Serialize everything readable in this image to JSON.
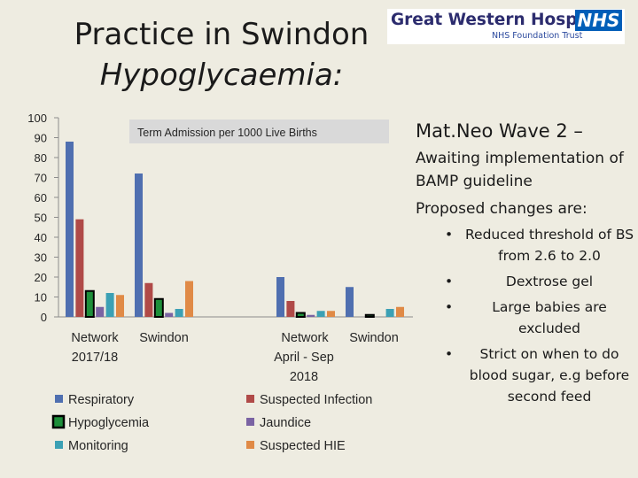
{
  "slide": {
    "title_line1": "Practice in Swindon",
    "title_line2": "Hypoglycaemia:"
  },
  "logo": {
    "name": "Great Western Hospitals",
    "badge": "NHS",
    "subtitle": "NHS Foundation Trust"
  },
  "right_text": {
    "heading": "Mat.Neo Wave 2 –",
    "line1": "Awaiting implementation of BAMP guideline",
    "line2": "Proposed changes are:",
    "bullet_char": "•",
    "bullets": [
      "Reduced threshold of BS from 2.6 to 2.0",
      "Dextrose gel",
      "Large babies are excluded",
      "Strict on when to do blood sugar, e.g before second feed"
    ]
  },
  "chart_data": {
    "type": "bar",
    "title": "Term Admission per 1000 Live Births",
    "categories": [
      "Network",
      "Swindon",
      "Network",
      "Swindon"
    ],
    "group_labels": [
      "2017/18",
      "April - Sep 2018"
    ],
    "ylim": [
      0,
      100
    ],
    "yticks": [
      0,
      10,
      20,
      30,
      40,
      50,
      60,
      70,
      80,
      90,
      100
    ],
    "grid": false,
    "legend_position": "bottom",
    "series": [
      {
        "name": "Respiratory",
        "color": "#4f6fb0",
        "values": [
          88,
          72,
          20,
          15
        ]
      },
      {
        "name": "Suspected Infection",
        "color": "#b04a48",
        "values": [
          49,
          17,
          8,
          0
        ]
      },
      {
        "name": "Hypoglycemia",
        "color": "#1e8f3a",
        "values": [
          13,
          9,
          2,
          1
        ],
        "outline": "#000000"
      },
      {
        "name": "Jaundice",
        "color": "#7a63a3",
        "values": [
          5,
          2,
          1,
          0
        ]
      },
      {
        "name": "Monitoring",
        "color": "#3ba0b4",
        "values": [
          12,
          4,
          3,
          4
        ]
      },
      {
        "name": "Suspected HIE",
        "color": "#e08a46",
        "values": [
          11,
          18,
          3,
          5
        ]
      }
    ]
  }
}
